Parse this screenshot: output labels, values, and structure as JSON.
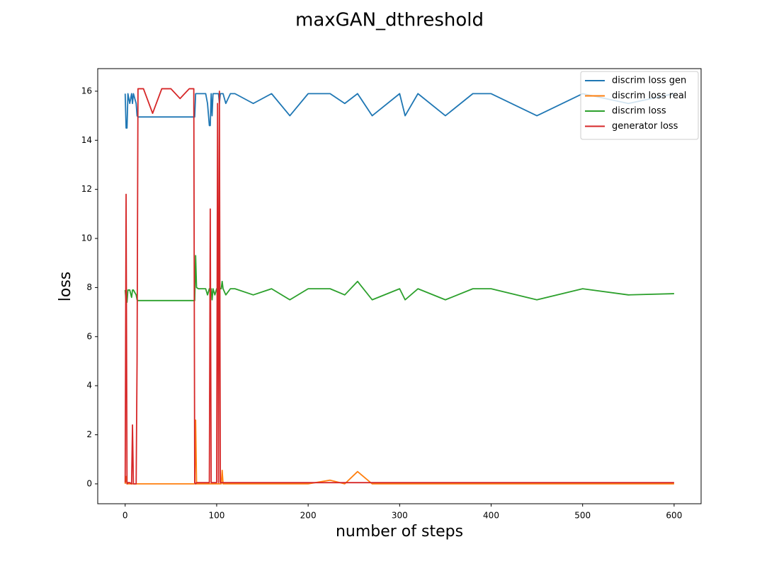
{
  "chart_data": {
    "type": "line",
    "title": "maxGAN_dthreshold",
    "xlabel": "number of steps",
    "ylabel": "loss",
    "x": [
      0,
      1,
      2,
      3,
      5,
      7,
      8,
      9,
      12,
      13,
      14,
      20,
      30,
      40,
      50,
      60,
      70,
      75,
      76,
      77,
      78,
      80,
      88,
      90,
      92,
      93,
      94,
      95,
      96,
      98,
      100,
      101,
      102,
      103,
      104,
      105,
      106,
      107,
      110,
      115,
      120,
      140,
      160,
      180,
      200,
      224,
      240,
      254,
      270,
      300,
      306,
      320,
      350,
      380,
      400,
      450,
      500,
      550,
      600
    ],
    "series": [
      {
        "name": "discrim loss gen",
        "color": "#1f77b4",
        "values": [
          15.9,
          14.5,
          14.5,
          15.9,
          15.5,
          15.9,
          15.5,
          15.9,
          15.5,
          15.0,
          14.95,
          14.95,
          14.95,
          14.95,
          14.95,
          14.95,
          14.95,
          14.95,
          14.95,
          15.9,
          15.9,
          15.9,
          15.9,
          15.5,
          14.6,
          14.6,
          15.9,
          15.0,
          15.9,
          15.9,
          15.9,
          15.9,
          15.9,
          15.5,
          15.9,
          15.9,
          15.9,
          15.9,
          15.5,
          15.9,
          15.9,
          15.5,
          15.9,
          15.0,
          15.9,
          15.9,
          15.5,
          15.9,
          15.0,
          15.9,
          15.0,
          15.9,
          15.0,
          15.9,
          15.9,
          15.0,
          15.9,
          15.5,
          15.9
        ]
      },
      {
        "name": "discrim loss real",
        "color": "#ff7f0e",
        "values": [
          0,
          0.3,
          0,
          0,
          0,
          0,
          0,
          0,
          0,
          0,
          0,
          0,
          0,
          0,
          0,
          0,
          0,
          0,
          0,
          2.6,
          0,
          0,
          0,
          0,
          0,
          0,
          0,
          0,
          0,
          0,
          0,
          0,
          0,
          0,
          0,
          0,
          0.55,
          0,
          0,
          0,
          0,
          0,
          0,
          0,
          0,
          0.15,
          0,
          0.5,
          0,
          0,
          0,
          0,
          0,
          0,
          0,
          0,
          0,
          0,
          0
        ]
      },
      {
        "name": "discrim loss",
        "color": "#2ca02c",
        "values": [
          7.9,
          7.4,
          7.4,
          7.9,
          7.9,
          7.6,
          7.9,
          7.9,
          7.7,
          7.5,
          7.47,
          7.47,
          7.47,
          7.47,
          7.47,
          7.47,
          7.47,
          7.47,
          7.47,
          9.3,
          8.0,
          7.95,
          7.95,
          7.7,
          7.95,
          7.95,
          7.95,
          7.5,
          7.95,
          7.7,
          7.95,
          7.95,
          7.95,
          7.95,
          7.95,
          7.95,
          8.25,
          7.95,
          7.7,
          7.95,
          7.95,
          7.7,
          7.95,
          7.5,
          7.95,
          7.95,
          7.7,
          8.25,
          7.5,
          7.95,
          7.5,
          7.95,
          7.5,
          7.95,
          7.95,
          7.5,
          7.95,
          7.7,
          7.75
        ]
      },
      {
        "name": "generator loss",
        "color": "#d62728",
        "values": [
          0.05,
          11.8,
          0,
          0.05,
          0.05,
          0,
          2.4,
          0,
          0,
          5,
          16.1,
          16.1,
          15.1,
          16.1,
          16.1,
          15.7,
          16.1,
          16.1,
          0.05,
          0,
          0.05,
          0.05,
          0.05,
          0.05,
          0.05,
          11.2,
          0.05,
          0.05,
          0.05,
          0.05,
          0.05,
          15.5,
          0.05,
          16.0,
          0.05,
          0.05,
          0.05,
          0.05,
          0.05,
          0.05,
          0.05,
          0.05,
          0.05,
          0.05,
          0.05,
          0.05,
          0.05,
          0.05,
          0.05,
          0.05,
          0.05,
          0.05,
          0.05,
          0.05,
          0.05,
          0.05,
          0.05,
          0.05,
          0.05
        ]
      }
    ],
    "xlim": [
      -30,
      629.5
    ],
    "ylim": [
      -0.81,
      16.92
    ],
    "xticks": [
      0,
      100,
      200,
      300,
      400,
      500,
      600
    ],
    "yticks": [
      0,
      2,
      4,
      6,
      8,
      10,
      12,
      14,
      16
    ],
    "legend": "upper right"
  }
}
